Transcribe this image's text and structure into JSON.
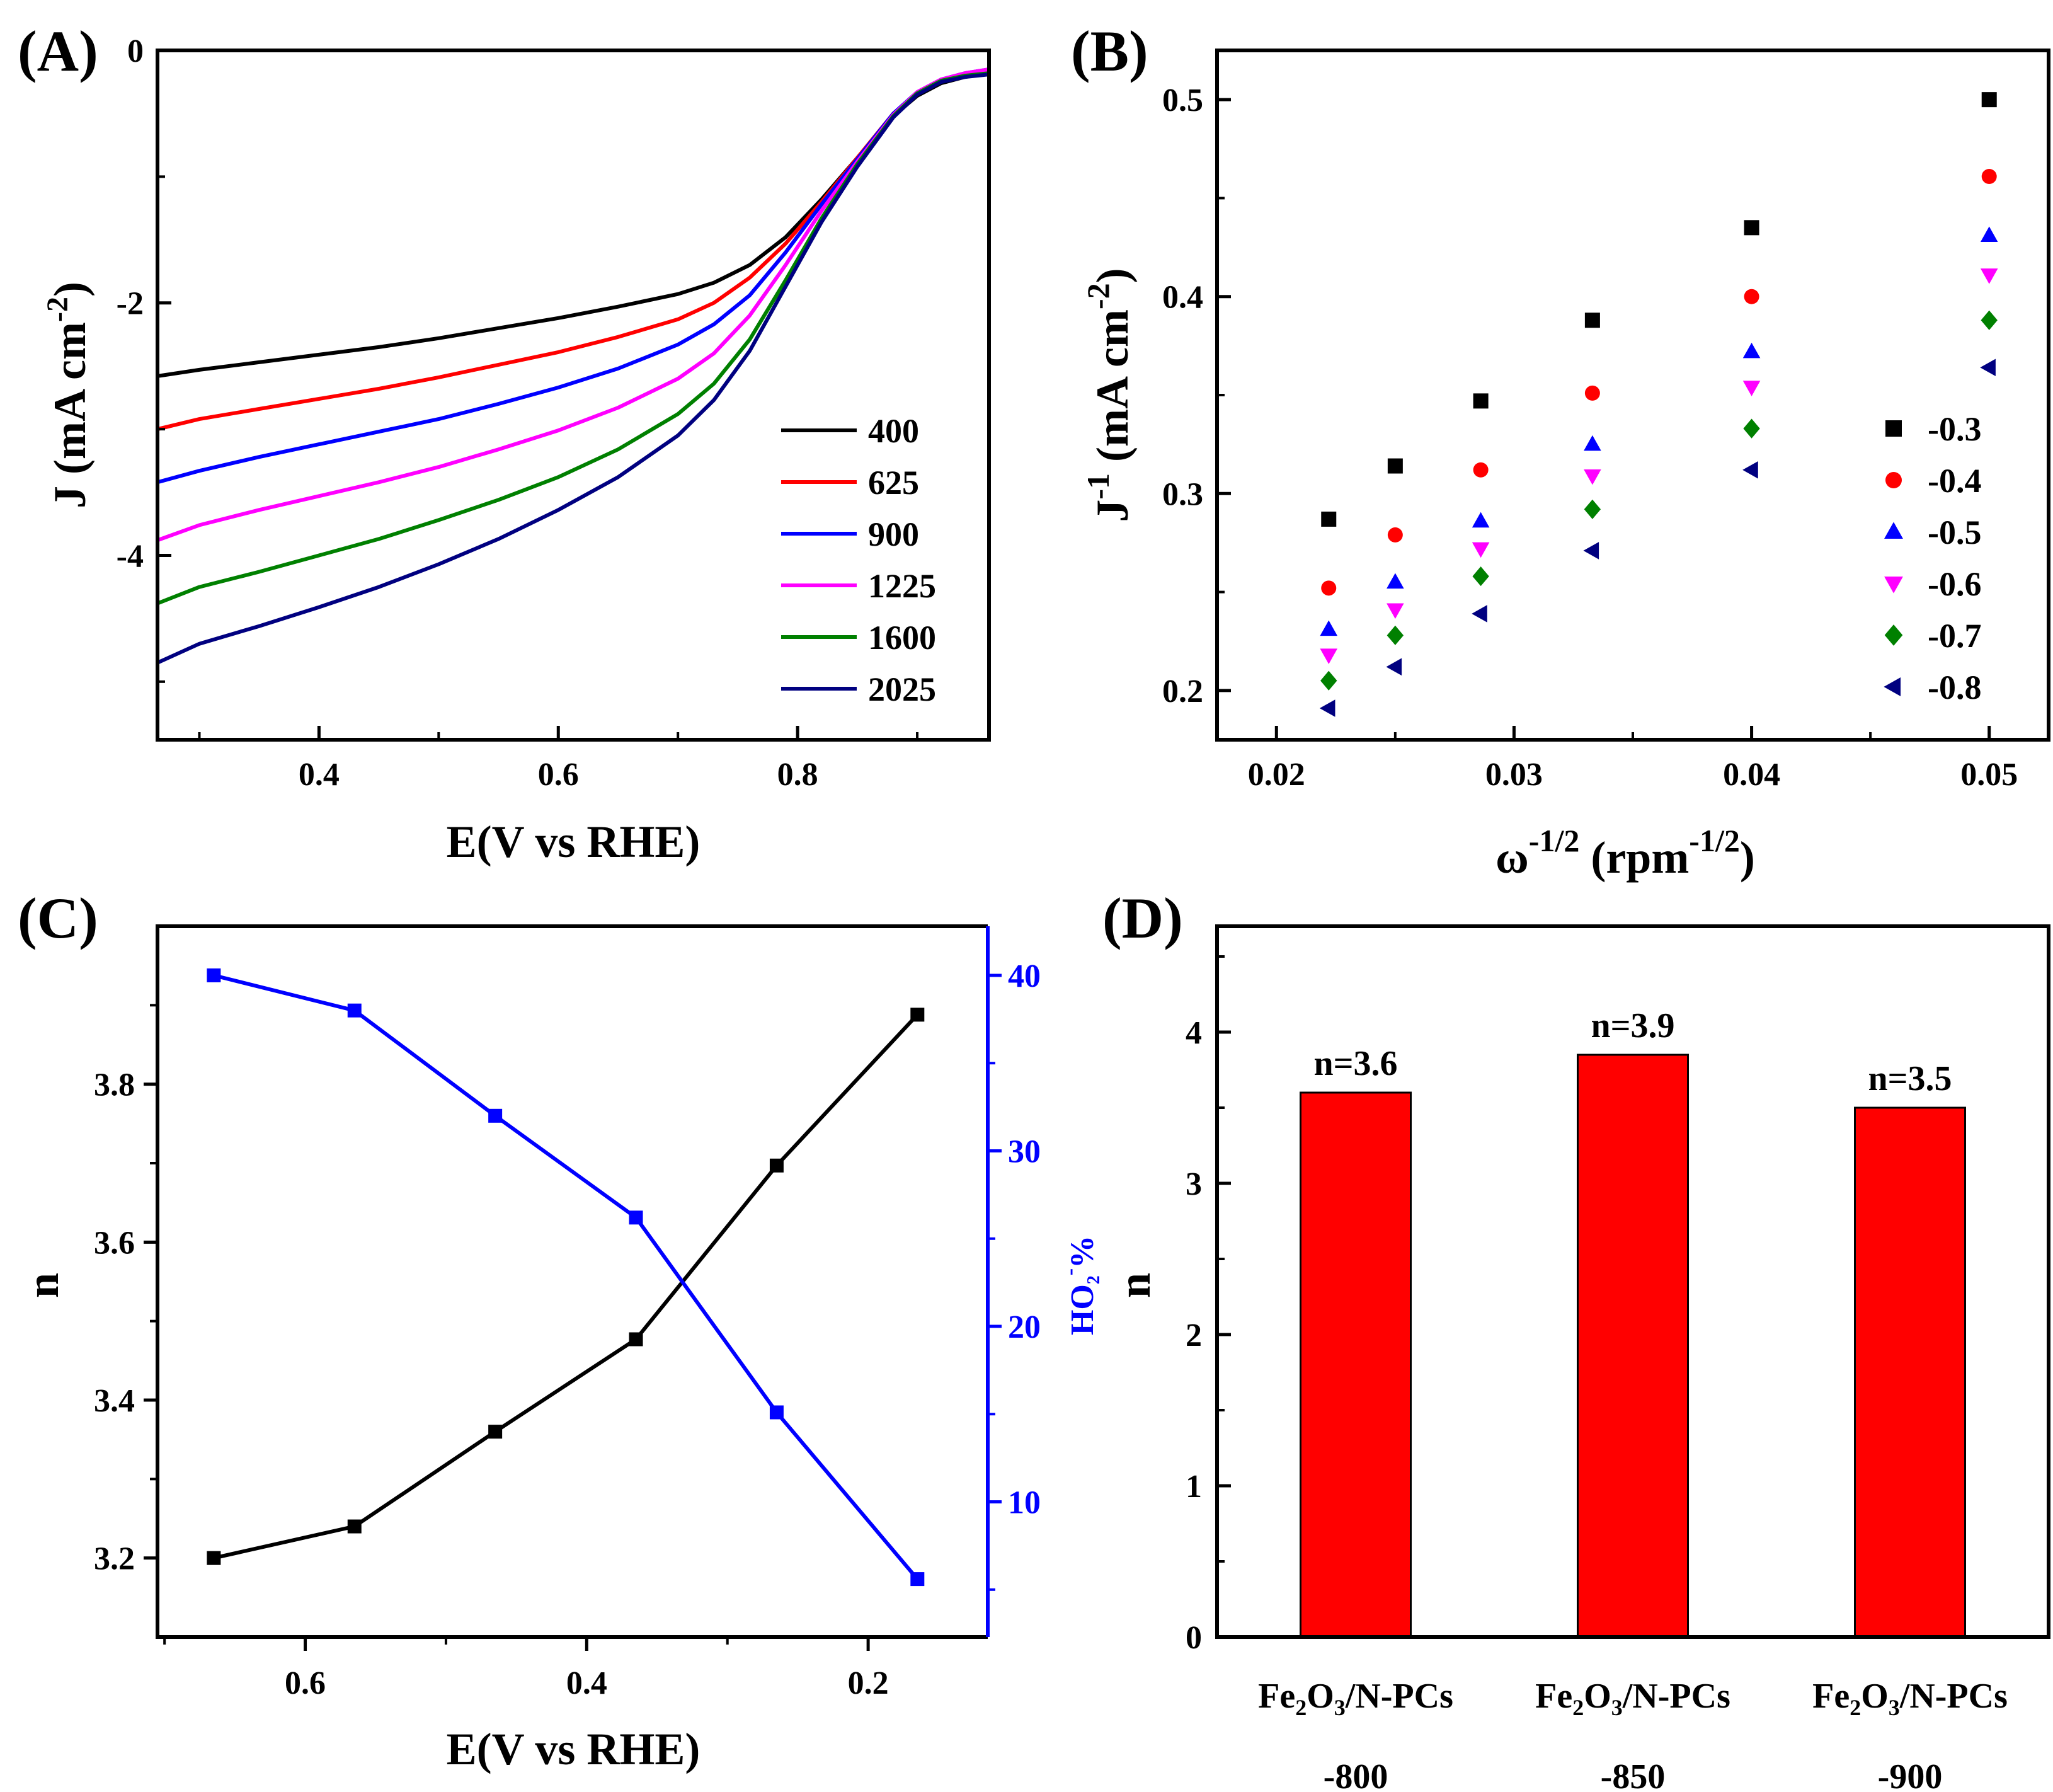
{
  "chart_data": [
    {
      "panel": "(A)",
      "type": "line",
      "xlabel": "E(V vs RHE)",
      "ylabel": "J (mA cm",
      "ylabel_sup": "-2",
      "xlim": [
        0.265,
        0.96
      ],
      "ylim": [
        -5.46,
        0
      ],
      "xticks": [
        {
          "v": 0.4,
          "label": "0.4"
        },
        {
          "v": 0.6,
          "label": "0.6"
        },
        {
          "v": 0.8,
          "label": "0.8"
        }
      ],
      "yticks": [
        {
          "v": 0,
          "label": "0"
        },
        {
          "v": -2,
          "label": "-2"
        },
        {
          "v": -4,
          "label": "-4"
        }
      ],
      "series": [
        {
          "name": "400",
          "color": "#000000",
          "x": [
            0.265,
            0.3,
            0.35,
            0.4,
            0.45,
            0.5,
            0.55,
            0.6,
            0.65,
            0.7,
            0.73,
            0.76,
            0.79,
            0.82,
            0.85,
            0.88,
            0.9,
            0.92,
            0.94,
            0.96
          ],
          "y": [
            -2.58,
            -2.53,
            -2.47,
            -2.41,
            -2.35,
            -2.28,
            -2.2,
            -2.12,
            -2.03,
            -1.93,
            -1.84,
            -1.7,
            -1.48,
            -1.18,
            -0.85,
            -0.52,
            -0.36,
            -0.26,
            -0.21,
            -0.18
          ]
        },
        {
          "name": "625",
          "color": "#ff0000",
          "x": [
            0.265,
            0.3,
            0.35,
            0.4,
            0.45,
            0.5,
            0.55,
            0.6,
            0.65,
            0.7,
            0.73,
            0.76,
            0.79,
            0.82,
            0.85,
            0.88,
            0.9,
            0.92,
            0.94,
            0.96
          ],
          "y": [
            -3.0,
            -2.92,
            -2.84,
            -2.76,
            -2.68,
            -2.59,
            -2.49,
            -2.39,
            -2.27,
            -2.13,
            -2.0,
            -1.8,
            -1.53,
            -1.2,
            -0.85,
            -0.5,
            -0.34,
            -0.24,
            -0.19,
            -0.16
          ]
        },
        {
          "name": "900",
          "color": "#0000ff",
          "x": [
            0.265,
            0.3,
            0.35,
            0.4,
            0.45,
            0.5,
            0.55,
            0.6,
            0.65,
            0.7,
            0.73,
            0.76,
            0.79,
            0.82,
            0.85,
            0.88,
            0.9,
            0.92,
            0.94,
            0.96
          ],
          "y": [
            -3.42,
            -3.33,
            -3.22,
            -3.12,
            -3.02,
            -2.92,
            -2.8,
            -2.67,
            -2.52,
            -2.33,
            -2.17,
            -1.94,
            -1.6,
            -1.22,
            -0.86,
            -0.5,
            -0.33,
            -0.23,
            -0.18,
            -0.15
          ]
        },
        {
          "name": "1225",
          "color": "#ff00ff",
          "x": [
            0.265,
            0.3,
            0.35,
            0.4,
            0.45,
            0.5,
            0.55,
            0.6,
            0.65,
            0.7,
            0.73,
            0.76,
            0.79,
            0.82,
            0.85,
            0.88,
            0.9,
            0.92,
            0.94,
            0.96
          ],
          "y": [
            -3.88,
            -3.76,
            -3.64,
            -3.53,
            -3.42,
            -3.3,
            -3.16,
            -3.01,
            -2.83,
            -2.6,
            -2.4,
            -2.1,
            -1.7,
            -1.27,
            -0.88,
            -0.51,
            -0.33,
            -0.23,
            -0.18,
            -0.15
          ]
        },
        {
          "name": "1600",
          "color": "#008000",
          "x": [
            0.265,
            0.3,
            0.35,
            0.4,
            0.45,
            0.5,
            0.55,
            0.6,
            0.65,
            0.7,
            0.73,
            0.76,
            0.79,
            0.82,
            0.85,
            0.88,
            0.9,
            0.92,
            0.94,
            0.96
          ],
          "y": [
            -4.38,
            -4.25,
            -4.13,
            -4.0,
            -3.87,
            -3.72,
            -3.56,
            -3.38,
            -3.16,
            -2.88,
            -2.64,
            -2.29,
            -1.82,
            -1.33,
            -0.9,
            -0.52,
            -0.34,
            -0.24,
            -0.2,
            -0.18
          ]
        },
        {
          "name": "2025",
          "color": "#000080",
          "x": [
            0.265,
            0.3,
            0.35,
            0.4,
            0.45,
            0.5,
            0.55,
            0.6,
            0.65,
            0.7,
            0.73,
            0.76,
            0.79,
            0.82,
            0.85,
            0.88,
            0.9,
            0.92,
            0.94,
            0.96
          ],
          "y": [
            -4.85,
            -4.7,
            -4.56,
            -4.41,
            -4.25,
            -4.07,
            -3.87,
            -3.64,
            -3.38,
            -3.05,
            -2.77,
            -2.38,
            -1.87,
            -1.36,
            -0.92,
            -0.53,
            -0.35,
            -0.25,
            -0.21,
            -0.19
          ]
        }
      ]
    },
    {
      "panel": "(B)",
      "type": "scatter",
      "xlabel": "ω",
      "xlabel_sup": "-1/2",
      "xlabel_mid": " (rpm",
      "xlabel_sup2": "-1/2",
      "xlabel_end": ")",
      "ylabel": "J",
      "ylabel_sup": "-1",
      "ylabel_mid": " (mA cm",
      "ylabel_sup2": "-2",
      "ylabel_end": ")",
      "xlim": [
        0.0175,
        0.0525
      ],
      "ylim": [
        0.175,
        0.525
      ],
      "xticks": [
        {
          "v": 0.02,
          "label": "0.02"
        },
        {
          "v": 0.03,
          "label": "0.03"
        },
        {
          "v": 0.04,
          "label": "0.04"
        },
        {
          "v": 0.05,
          "label": "0.05"
        }
      ],
      "yticks": [
        {
          "v": 0.2,
          "label": "0.2"
        },
        {
          "v": 0.3,
          "label": "0.3"
        },
        {
          "v": 0.4,
          "label": "0.4"
        },
        {
          "v": 0.5,
          "label": "0.5"
        }
      ],
      "x": [
        0.0222,
        0.025,
        0.0286,
        0.0333,
        0.04,
        0.05
      ],
      "series": [
        {
          "name": "-0.3",
          "color": "#000000",
          "marker": "square",
          "values": [
            0.287,
            0.314,
            0.347,
            0.388,
            0.435,
            0.5
          ]
        },
        {
          "name": "-0.4",
          "color": "#ff0000",
          "marker": "circle",
          "values": [
            0.252,
            0.279,
            0.312,
            0.351,
            0.4,
            0.461
          ]
        },
        {
          "name": "-0.5",
          "color": "#0000ff",
          "marker": "triangle-up",
          "values": [
            0.231,
            0.255,
            0.286,
            0.325,
            0.372,
            0.431
          ]
        },
        {
          "name": "-0.6",
          "color": "#ff00ff",
          "marker": "triangle-down",
          "values": [
            0.218,
            0.241,
            0.272,
            0.309,
            0.354,
            0.411
          ]
        },
        {
          "name": "-0.7",
          "color": "#008000",
          "marker": "diamond",
          "values": [
            0.205,
            0.228,
            0.258,
            0.292,
            0.333,
            0.388
          ]
        },
        {
          "name": "-0.8",
          "color": "#000080",
          "marker": "triangle-left",
          "values": [
            0.191,
            0.212,
            0.239,
            0.271,
            0.312,
            0.364
          ]
        }
      ]
    },
    {
      "panel": "(C)",
      "type": "line",
      "xlabel": "E(V vs RHE)",
      "ylabel": "n",
      "ylabel_right": "HO",
      "ylabel_right_sub": "2",
      "ylabel_right_sup": "-",
      "ylabel_right_end": "%",
      "xlim": [
        0.705,
        0.115
      ],
      "ylim": [
        3.1,
        4.0
      ],
      "y2lim": [
        2.3,
        42.8
      ],
      "xticks": [
        {
          "v": 0.6,
          "label": "0.6"
        },
        {
          "v": 0.4,
          "label": "0.4"
        },
        {
          "v": 0.2,
          "label": "0.2"
        }
      ],
      "yticks": [
        {
          "v": 3.2,
          "label": "3.2"
        },
        {
          "v": 3.4,
          "label": "3.4"
        },
        {
          "v": 3.6,
          "label": "3.6"
        },
        {
          "v": 3.8,
          "label": "3.8"
        }
      ],
      "y2ticks": [
        {
          "v": 10,
          "label": "10"
        },
        {
          "v": 20,
          "label": "20"
        },
        {
          "v": 30,
          "label": "30"
        },
        {
          "v": 40,
          "label": "40"
        }
      ],
      "x": [
        0.665,
        0.565,
        0.465,
        0.365,
        0.265,
        0.165
      ],
      "series": [
        {
          "name": "n",
          "axis": "left",
          "color": "#000000",
          "values": [
            3.2,
            3.24,
            3.36,
            3.477,
            3.697,
            3.888
          ]
        },
        {
          "name": "HO2-%",
          "axis": "right",
          "color": "#0000ff",
          "values": [
            40.0,
            38.0,
            32.0,
            26.2,
            15.1,
            5.6
          ]
        }
      ]
    },
    {
      "panel": "(D)",
      "type": "bar",
      "ylabel": "n",
      "ylim": [
        0,
        4.7
      ],
      "yticks": [
        {
          "v": 0,
          "label": "0"
        },
        {
          "v": 1,
          "label": "1"
        },
        {
          "v": 2,
          "label": "2"
        },
        {
          "v": 3,
          "label": "3"
        },
        {
          "v": 4,
          "label": "4"
        }
      ],
      "bar_color": "#ff0000",
      "categories": [
        {
          "line1_a": "Fe",
          "line1_sub1": "2",
          "line1_b": "O",
          "line1_sub2": "3",
          "line1_c": "/N-PCs",
          "line2": "-800"
        },
        {
          "line1_a": "Fe",
          "line1_sub1": "2",
          "line1_b": "O",
          "line1_sub2": "3",
          "line1_c": "/N-PCs",
          "line2": "-850"
        },
        {
          "line1_a": "Fe",
          "line1_sub1": "2",
          "line1_b": "O",
          "line1_sub2": "3",
          "line1_c": "/N-PCs",
          "line2": "-900"
        }
      ],
      "values": [
        3.6,
        3.85,
        3.5
      ],
      "data_labels": [
        "n=3.6",
        "n=3.9",
        "n=3.5"
      ]
    }
  ]
}
